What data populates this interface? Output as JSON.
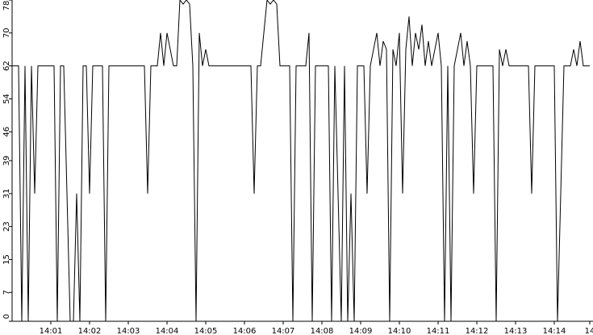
{
  "chart_data": {
    "type": "line",
    "categories": [
      null,
      null,
      null,
      null,
      null,
      null,
      null,
      null,
      null,
      null,
      null,
      null,
      "14:01",
      null,
      null,
      null,
      null,
      null,
      null,
      null,
      null,
      null,
      null,
      null,
      "14:02",
      null,
      null,
      null,
      null,
      null,
      null,
      null,
      null,
      null,
      null,
      null,
      "14:03",
      null,
      null,
      null,
      null,
      null,
      null,
      null,
      null,
      null,
      null,
      null,
      "14:04",
      null,
      null,
      null,
      null,
      null,
      null,
      null,
      null,
      null,
      null,
      null,
      "14:05",
      null,
      null,
      null,
      null,
      null,
      null,
      null,
      null,
      null,
      null,
      null,
      "14:06",
      null,
      null,
      null,
      null,
      null,
      null,
      null,
      null,
      null,
      null,
      null,
      "14:07",
      null,
      null,
      null,
      null,
      null,
      null,
      null,
      null,
      null,
      null,
      null,
      "14:08",
      null,
      null,
      null,
      null,
      null,
      null,
      null,
      null,
      null,
      null,
      null,
      "14:09",
      null,
      null,
      null,
      null,
      null,
      null,
      null,
      null,
      null,
      null,
      null,
      "14:10",
      null,
      null,
      null,
      null,
      null,
      null,
      null,
      null,
      null,
      null,
      null,
      "14:11",
      null,
      null,
      null,
      null,
      null,
      null,
      null,
      null,
      null,
      null,
      null,
      "14:12",
      null,
      null,
      null,
      null,
      null,
      null,
      null,
      null,
      null,
      null,
      null,
      "14:13",
      null,
      null,
      null,
      null,
      null,
      null,
      null,
      null,
      null,
      null,
      null,
      "14:14",
      null,
      null,
      null,
      null,
      null,
      null,
      null,
      null,
      null,
      null,
      "14"
    ],
    "values": [
      62,
      62,
      62,
      0,
      62,
      0,
      62,
      31,
      62,
      62,
      62,
      62,
      62,
      62,
      0,
      62,
      62,
      31,
      0,
      0,
      31,
      0,
      62,
      62,
      31,
      62,
      62,
      62,
      62,
      0,
      62,
      62,
      62,
      62,
      62,
      62,
      62,
      62,
      62,
      62,
      62,
      62,
      31,
      62,
      62,
      62,
      70,
      62,
      70,
      66,
      62,
      62,
      78,
      77,
      78,
      77,
      62,
      0,
      70,
      62,
      66,
      62,
      62,
      62,
      62,
      62,
      62,
      62,
      62,
      62,
      62,
      62,
      62,
      62,
      62,
      31,
      62,
      62,
      70,
      78,
      77,
      78,
      77,
      62,
      62,
      62,
      62,
      0,
      62,
      62,
      62,
      62,
      70,
      0,
      62,
      62,
      62,
      62,
      62,
      0,
      62,
      31,
      0,
      62,
      0,
      31,
      0,
      62,
      62,
      62,
      31,
      62,
      66,
      70,
      62,
      68,
      66,
      0,
      66,
      62,
      70,
      31,
      66,
      74,
      62,
      70,
      66,
      72,
      62,
      68,
      62,
      66,
      70,
      62,
      0,
      62,
      0,
      62,
      66,
      70,
      62,
      68,
      62,
      31,
      62,
      62,
      62,
      62,
      62,
      62,
      0,
      66,
      62,
      66,
      62,
      62,
      62,
      62,
      62,
      62,
      62,
      31,
      62,
      62,
      62,
      62,
      62,
      62,
      62,
      0,
      31,
      62,
      62,
      62,
      66,
      62,
      68,
      62,
      62,
      62
    ],
    "color": "#000000",
    "ylim": [
      0,
      78
    ],
    "yticks": [
      0,
      7,
      15,
      23,
      31,
      39,
      46,
      54,
      62,
      70,
      78
    ]
  }
}
